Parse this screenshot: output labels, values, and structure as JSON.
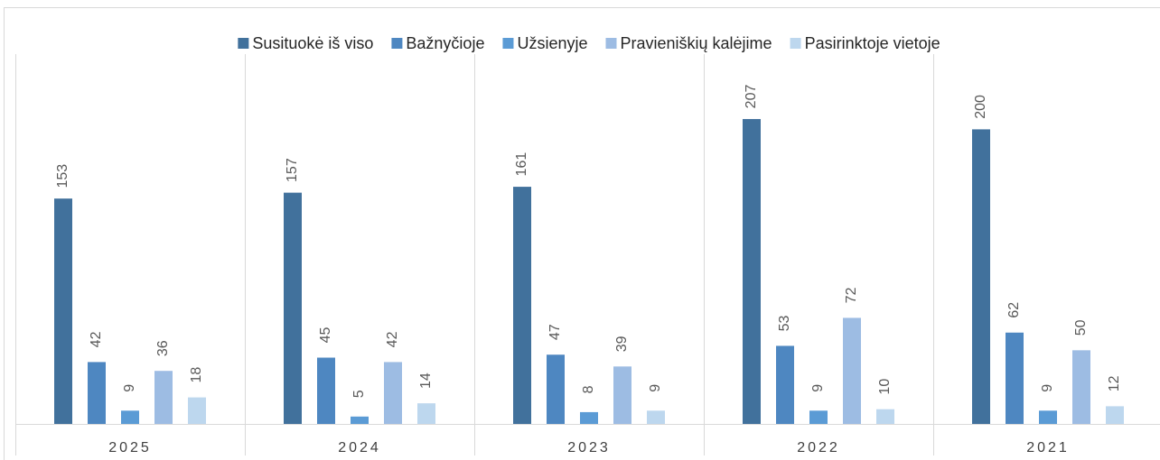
{
  "chart_data": {
    "type": "bar",
    "categories": [
      "2025",
      "2024",
      "2023",
      "2022",
      "2021"
    ],
    "series": [
      {
        "name": "Susituokė iš viso",
        "color": "#41719c",
        "values": [
          153,
          157,
          161,
          207,
          200
        ]
      },
      {
        "name": "Bažnyčioje",
        "color": "#4e87c1",
        "values": [
          42,
          45,
          47,
          53,
          62
        ]
      },
      {
        "name": "Užsienyje",
        "color": "#5b9bd5",
        "values": [
          9,
          5,
          8,
          9,
          9
        ]
      },
      {
        "name": "Pravieniškių kalėjime",
        "color": "#9dbce3",
        "values": [
          36,
          42,
          39,
          72,
          50
        ]
      },
      {
        "name": "Pasirinktoje vietoje",
        "color": "#bdd7ee",
        "values": [
          18,
          14,
          9,
          10,
          12
        ]
      }
    ],
    "legend": "top"
  }
}
